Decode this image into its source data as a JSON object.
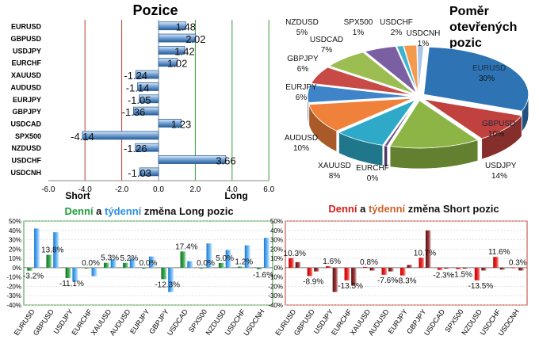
{
  "colors": {
    "green": "#1f9e3a",
    "blue": "#2a8fe0",
    "red": "#d51c1c",
    "orange": "#c9642a",
    "barBlue": "#3d7fc4",
    "gridGreen": "#3a9b3a",
    "gridRed": "#c0392b"
  },
  "chart_data": [
    {
      "type": "bar",
      "orientation": "horizontal",
      "title": "Pozice",
      "categories": [
        "EURUSD",
        "GBPUSD",
        "USDJPY",
        "EURCHF",
        "XAUUSD",
        "AUDUSD",
        "EURJPY",
        "GBPJPY",
        "USDCAD",
        "SPX500",
        "NZDUSD",
        "USDCHF",
        "USDCNH"
      ],
      "values": [
        1.48,
        2.02,
        1.42,
        1.02,
        -1.24,
        -1.14,
        -1.05,
        -1.36,
        1.23,
        -4.14,
        -1.26,
        3.66,
        -1.03
      ],
      "labels": [
        "1.48",
        "2.02",
        "1.42",
        "1.02",
        "-1.24",
        "-1.14",
        "-1.05",
        "-1.36",
        "1.23",
        "-4.14",
        "-1.26",
        "3.66",
        "-1.03"
      ],
      "xlim": [
        -6,
        6
      ],
      "ticks": [
        "-6.0",
        "-4.0",
        "-2.0",
        "0.0",
        "2.0",
        "4.0",
        "6.0"
      ],
      "short_label": "Short",
      "long_label": "Long"
    },
    {
      "type": "pie",
      "title": "Poměr otevřených pozic",
      "title_lines": [
        "Poměr",
        "otevřených",
        "pozic"
      ],
      "slices": [
        {
          "name": "EURUSD",
          "label": "30%",
          "value": 30,
          "color": "#2e74b5"
        },
        {
          "name": "GBPUSD",
          "label": "10%",
          "value": 10,
          "color": "#c0413d"
        },
        {
          "name": "USDJPY",
          "label": "14%",
          "value": 14,
          "color": "#8db545"
        },
        {
          "name": "EURCHF",
          "label": "0%",
          "value": 0.5,
          "color": "#6b4f8f"
        },
        {
          "name": "XAUUSD",
          "label": "8%",
          "value": 8,
          "color": "#2ea9c7"
        },
        {
          "name": "AUDUSD",
          "label": "10%",
          "value": 10,
          "color": "#f0813a"
        },
        {
          "name": "EURJPY",
          "label": "6%",
          "value": 6,
          "color": "#3f84c9"
        },
        {
          "name": "GBPJPY",
          "label": "6%",
          "value": 6,
          "color": "#c84a47"
        },
        {
          "name": "USDCAD",
          "label": "7%",
          "value": 7,
          "color": "#9bbd52"
        },
        {
          "name": "NZDUSD",
          "label": "5%",
          "value": 5,
          "color": "#7b5fa3"
        },
        {
          "name": "SPX500",
          "label": "1%",
          "value": 1,
          "color": "#40b3cf"
        },
        {
          "name": "USDCHF",
          "label": "2%",
          "value": 2,
          "color": "#f39a4f"
        },
        {
          "name": "USDCNH",
          "label": "1%",
          "value": 1,
          "color": "#a9c4e8"
        }
      ]
    },
    {
      "type": "bar",
      "title": "Denní a týdenní změna Long pozic",
      "title_parts": [
        "Denní",
        " a ",
        "týdenní",
        " změna Long pozic"
      ],
      "categories": [
        "EURUSD",
        "GBPUSD",
        "USDJPY",
        "EURCHF",
        "XAUUSD",
        "AUDUSD",
        "EURJPY",
        "GBPJPY",
        "USDCAD",
        "SPX500",
        "NZDUSD",
        "USDCHF",
        "USDCNH"
      ],
      "series": [
        {
          "name": "Denní",
          "values": [
            -3.2,
            13.8,
            -11.1,
            0.0,
            5.3,
            5.2,
            0.0,
            -12.3,
            17.4,
            0.0,
            5.0,
            1.2,
            -1.6
          ]
        },
        {
          "name": "týdenní",
          "values": [
            42,
            38,
            -15,
            -9,
            9,
            10,
            12,
            -26,
            7,
            26,
            19,
            24,
            32
          ]
        }
      ],
      "labels": [
        "-3.2%",
        "13.8%",
        "-11.1%",
        "0.0%",
        "5.3%",
        "5.2%",
        "0.0%",
        "-12.3%",
        "17.4%",
        "0.0%",
        "5.0%",
        "1.2%",
        "-1.6%"
      ],
      "ylim": [
        -40,
        50
      ],
      "ticks": [
        "-40%",
        "-30%",
        "-20%",
        "-10%",
        "0%",
        "10%",
        "20%",
        "30%",
        "40%",
        "50%"
      ]
    },
    {
      "type": "bar",
      "title": "Denní a týdenní změna Short pozic",
      "title_parts": [
        "Denní",
        " a ",
        "týdenní",
        " změna Short pozic"
      ],
      "categories": [
        "EURUSD",
        "GBPUSD",
        "USDJPY",
        "EURCHF",
        "XAUUSD",
        "AUDUSD",
        "EURJPY",
        "GBPJPY",
        "USDCAD",
        "SPX500",
        "NZDUSD",
        "USDCHF",
        "USDCNH"
      ],
      "series": [
        {
          "name": "Denní",
          "values": [
            10.3,
            -8.9,
            1.6,
            -13.5,
            0.8,
            -7.6,
            -8.3,
            10.7,
            -2.3,
            -1.5,
            -13.5,
            11.6,
            0.3
          ]
        },
        {
          "name": "týdenní",
          "values": [
            6,
            -4,
            -26,
            -19,
            -3,
            -4,
            3,
            40,
            -1,
            -1,
            -3,
            -2,
            -3
          ]
        }
      ],
      "labels": [
        "10.3%",
        "-8.9%",
        "1.6%",
        "-13.5%",
        "0.8%",
        "-7.6%",
        "-8.3%",
        "10.7%",
        "-2.3%",
        "-1.5%",
        "-13.5%",
        "11.6%",
        "0.3%"
      ],
      "ylim": [
        -40,
        50
      ],
      "ticks": [
        "-40%",
        "-30%",
        "-20%",
        "-10%",
        "0%",
        "10%",
        "20%",
        "30%",
        "40%",
        "50%"
      ]
    }
  ]
}
